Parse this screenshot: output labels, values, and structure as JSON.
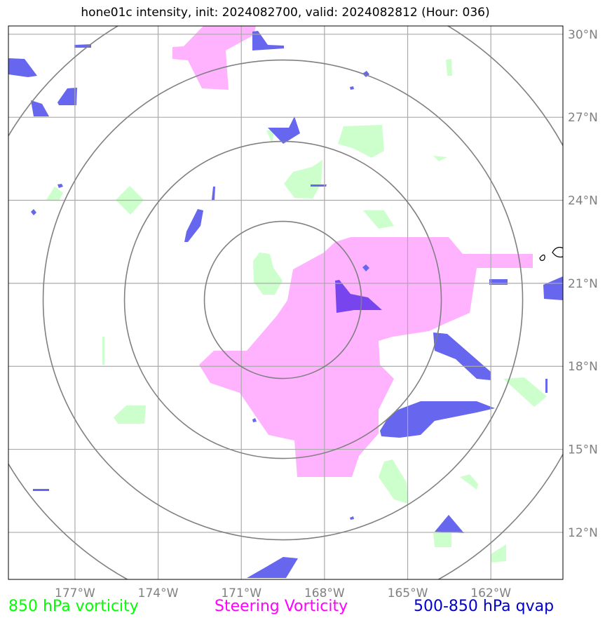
{
  "title": "hone01c intensity, init: 2024082700, valid: 2024082812 (Hour: 036)",
  "lon_labels": [
    "177°W",
    "174°W",
    "171°W",
    "168°W",
    "165°W",
    "162°W"
  ],
  "lat_labels": [
    "30°N",
    "27°N",
    "24°N",
    "21°N",
    "18°N",
    "15°N",
    "12°N"
  ],
  "legend": [
    {
      "label": "850 hPa vorticity",
      "color": "#00ff00"
    },
    {
      "label": "Steering Vorticity",
      "color": "#ff00ff"
    },
    {
      "label": "500-850 hPa qvap",
      "color": "#0000cc"
    }
  ],
  "layer_colors": {
    "vort850": "#ccffcc",
    "steering": "#ffb3ff",
    "qvap": "#6666ee",
    "overlap": "#7744ee",
    "gridline": "#aaaaaa",
    "range_ring": "#808080"
  },
  "map_data": {
    "lon_range": [
      -179.4,
      -159.4
    ],
    "lat_range": [
      10.3,
      30.3
    ],
    "lon_ticks": [
      -177,
      -174,
      -171,
      -168,
      -165,
      -162
    ],
    "lat_ticks": [
      30,
      27,
      24,
      21,
      18,
      15,
      12
    ],
    "center": {
      "lon": -169.5,
      "lat": 20.4
    }
  }
}
